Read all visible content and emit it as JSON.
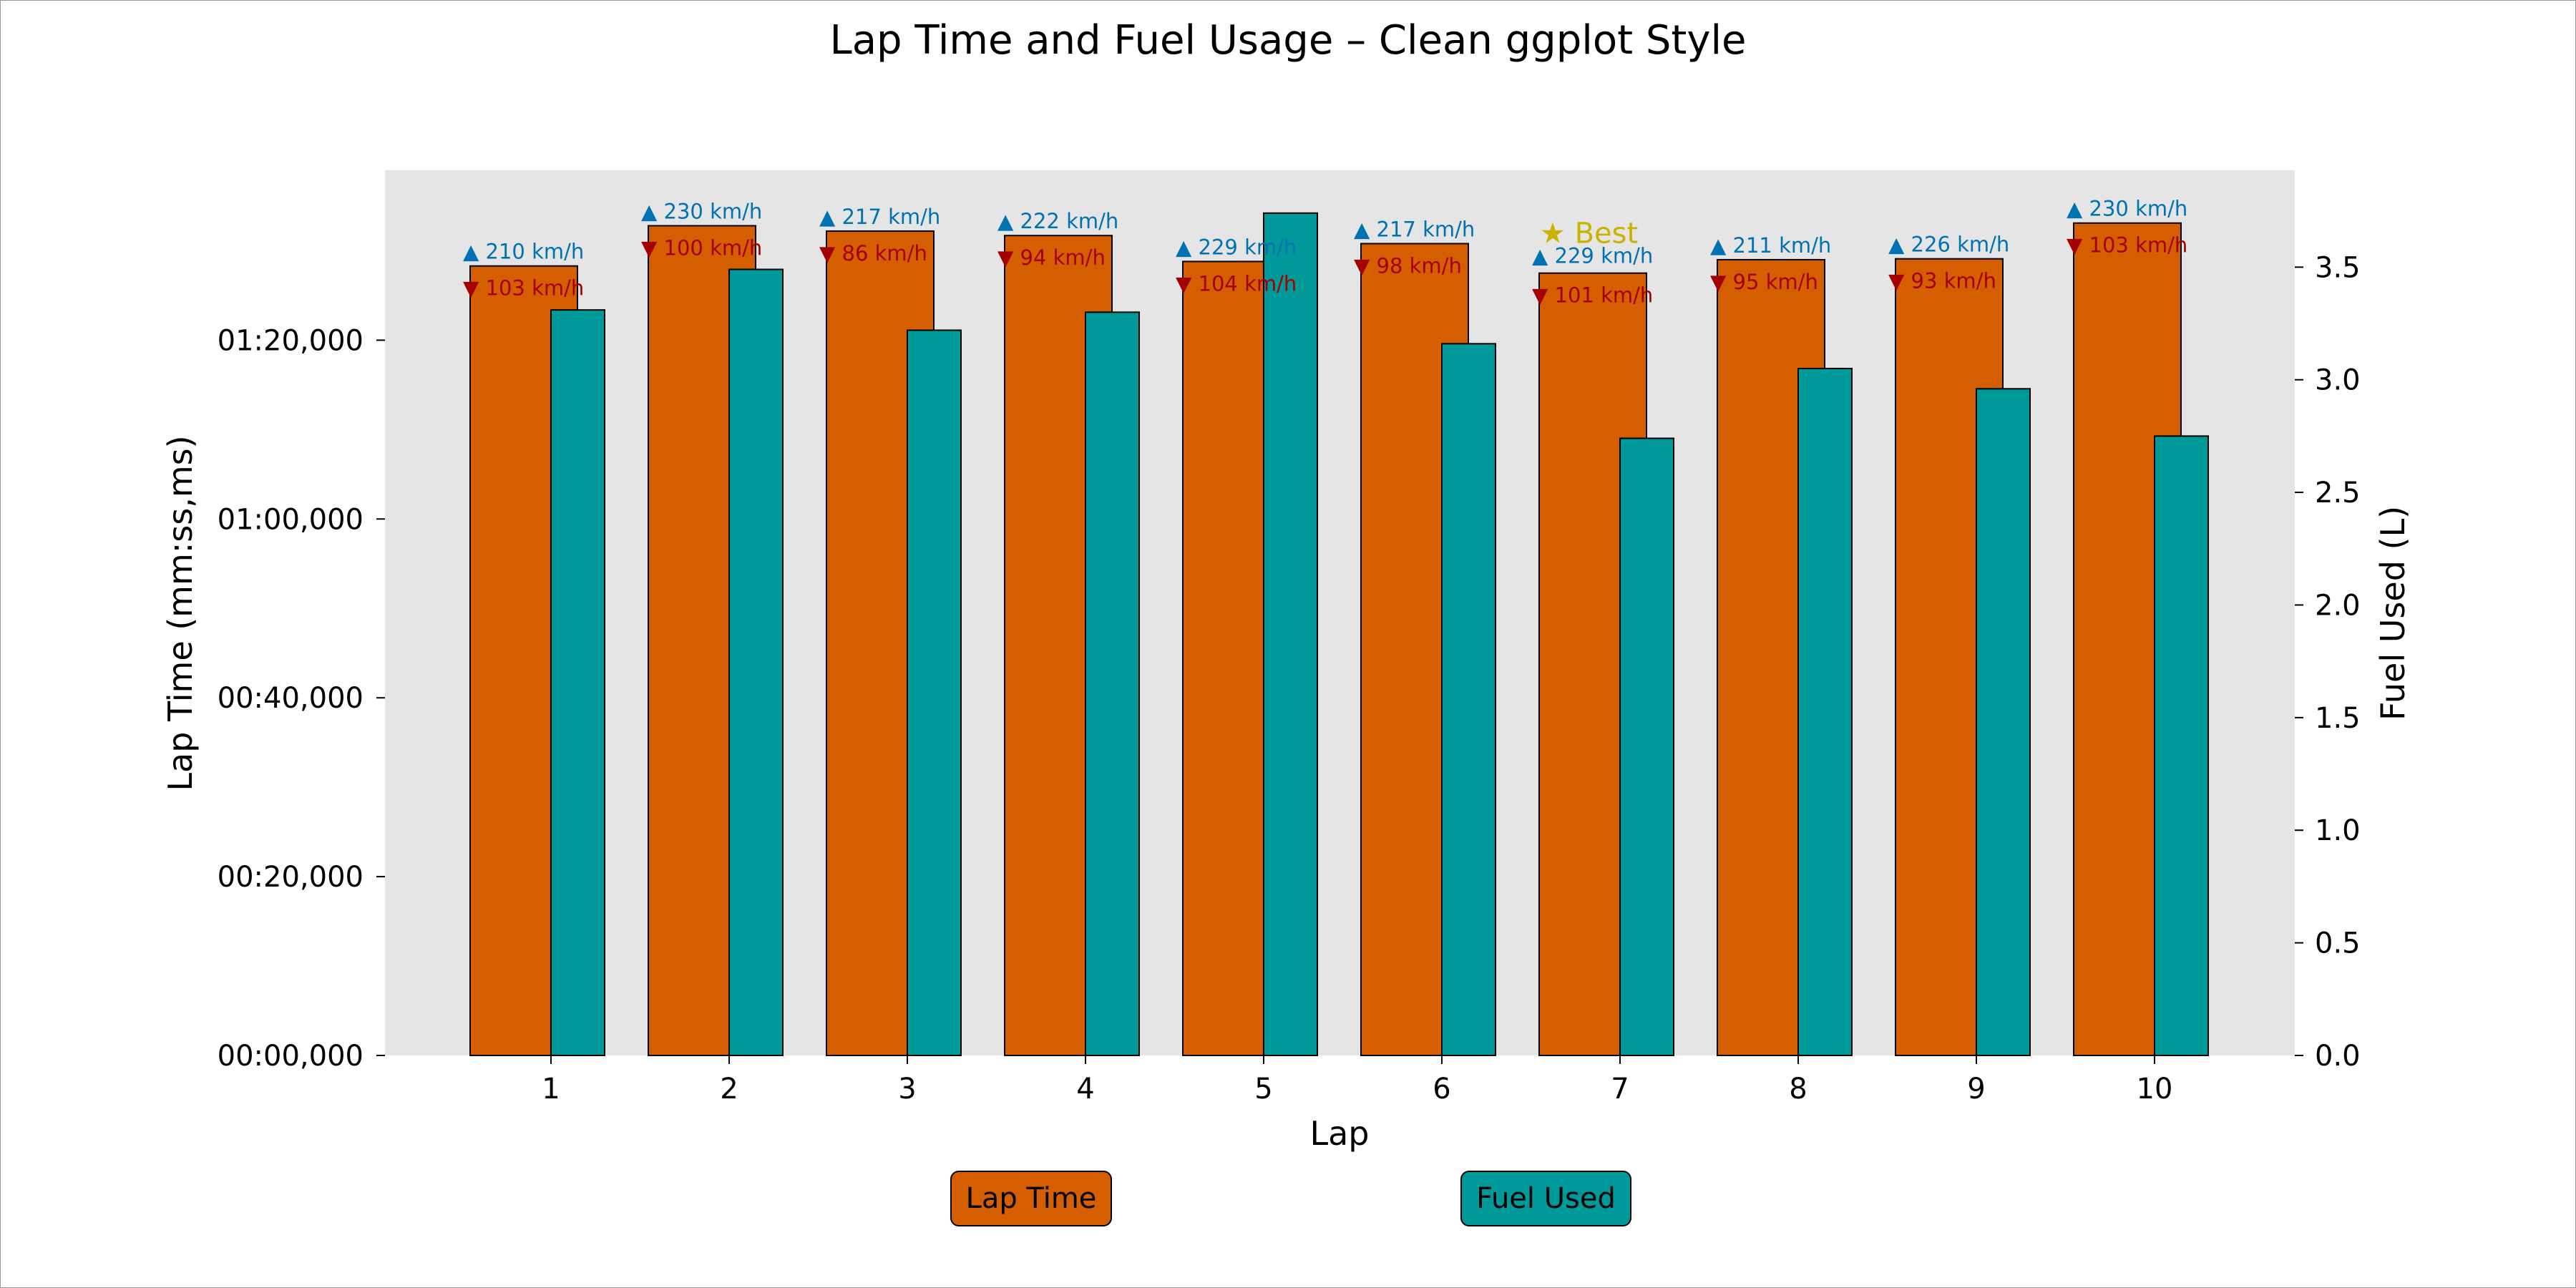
{
  "chart_data": {
    "type": "bar",
    "title": "Lap Time and Fuel Usage – Clean ggplot Style",
    "xlabel": "Lap",
    "ylabel_left": "Lap Time (mm:ss,ms)",
    "ylabel_right": "Fuel Used (L)",
    "categories": [
      "1",
      "2",
      "3",
      "4",
      "5",
      "6",
      "7",
      "8",
      "9",
      "10"
    ],
    "series": [
      {
        "name": "Lap Time",
        "axis": "left",
        "unit": "ms",
        "color": "#d55e00",
        "values": [
          88300,
          92800,
          92200,
          91700,
          88800,
          90800,
          87500,
          89000,
          89100,
          93100
        ]
      },
      {
        "name": "Fuel Used",
        "axis": "right",
        "unit": "L",
        "color": "#009999",
        "values": [
          3.31,
          3.49,
          3.22,
          3.3,
          3.74,
          3.16,
          2.74,
          3.05,
          2.96,
          2.75
        ]
      }
    ],
    "top_speed_labels": [
      "▲ 210 km/h",
      "▲ 230 km/h",
      "▲ 217 km/h",
      "▲ 222 km/h",
      "▲ 229 km/h",
      "▲ 217 km/h",
      "▲ 229 km/h",
      "▲ 211 km/h",
      "▲ 226 km/h",
      "▲ 230 km/h"
    ],
    "min_speed_labels": [
      "▼ 103 km/h",
      "▼ 100 km/h",
      "▼ 86 km/h",
      "▼ 94 km/h",
      "▼ 104 km/h",
      "▼ 98 km/h",
      "▼ 101 km/h",
      "▼ 95 km/h",
      "▼ 93 km/h",
      "▼ 103 km/h"
    ],
    "top_speed_color": "#0072b2",
    "min_speed_color": "#a50000",
    "best_lap": {
      "category": "7",
      "label": "★ Best",
      "color": "#c8b400"
    },
    "ylim_left_ms": [
      0,
      99000
    ],
    "yticks_left": [
      "00:00,000",
      "00:20,000",
      "00:40,000",
      "01:00,000",
      "01:20,000"
    ],
    "ylim_right": [
      0,
      3.93
    ],
    "yticks_right": [
      "0.0",
      "0.5",
      "1.0",
      "1.5",
      "2.0",
      "2.5",
      "3.0",
      "3.5"
    ],
    "background": "#e5e5e5",
    "grid": false,
    "legend_position": "bottom"
  },
  "legend": {
    "lap_time": "Lap Time",
    "fuel_used": "Fuel Used"
  }
}
